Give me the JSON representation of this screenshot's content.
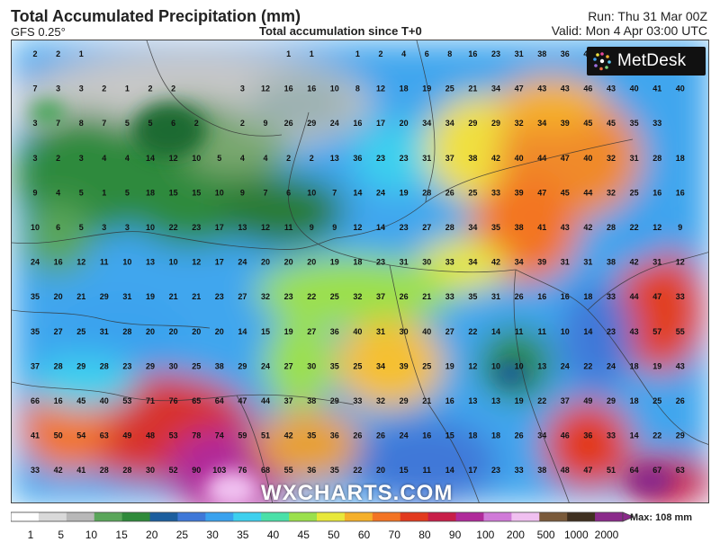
{
  "header": {
    "title": "Total Accumulated Precipitation (mm)",
    "model": "GFS 0.25°",
    "subtitle": "Total accumulation since T+0",
    "run": "Run: Thu 31 Mar 00Z",
    "valid": "Valid: Mon 4 Apr 03:00 UTC"
  },
  "branding": {
    "logo_text": "MetDesk",
    "watermark": "WXCHARTS.COM"
  },
  "legend": {
    "ticks": [
      "1",
      "5",
      "10",
      "15",
      "20",
      "25",
      "30",
      "35",
      "40",
      "45",
      "50",
      "60",
      "70",
      "80",
      "90",
      "100",
      "200",
      "500",
      "1000",
      "2000"
    ],
    "colors": [
      "#ffffff",
      "#d9d9d9",
      "#b8b8b8",
      "#5aa65a",
      "#2f8a3a",
      "#1c5e9e",
      "#3f78d8",
      "#3aa2ee",
      "#3ed0ee",
      "#4ae0a8",
      "#9be04c",
      "#e8e83a",
      "#f5b02a",
      "#f37424",
      "#e23a1e",
      "#c81e48",
      "#b02a9a",
      "#d07ad8",
      "#f0c0f0",
      "#7a5a3a",
      "#403020",
      "#8a2a8a"
    ],
    "max_label": "Max: 108 mm"
  },
  "grid_values": [
    [
      2,
      2,
      1,
      null,
      null,
      null,
      null,
      null,
      null,
      null,
      null,
      1,
      1,
      null,
      1,
      2,
      4,
      6,
      8,
      16,
      23,
      31,
      38,
      36,
      44,
      null,
      null,
      null,
      null,
      null
    ],
    [
      7,
      3,
      3,
      2,
      1,
      2,
      2,
      null,
      null,
      3,
      12,
      16,
      16,
      10,
      8,
      12,
      18,
      19,
      25,
      21,
      34,
      47,
      43,
      43,
      46,
      43,
      40,
      41,
      40,
      null
    ],
    [
      3,
      7,
      8,
      7,
      5,
      5,
      6,
      2,
      null,
      2,
      9,
      26,
      29,
      24,
      16,
      17,
      20,
      34,
      34,
      29,
      29,
      32,
      34,
      39,
      45,
      45,
      35,
      33,
      null,
      null
    ],
    [
      3,
      2,
      3,
      4,
      4,
      14,
      12,
      10,
      5,
      4,
      4,
      2,
      2,
      13,
      36,
      23,
      23,
      31,
      37,
      38,
      42,
      40,
      44,
      47,
      40,
      32,
      31,
      28,
      18,
      null
    ],
    [
      9,
      4,
      5,
      1,
      5,
      18,
      15,
      15,
      10,
      9,
      7,
      6,
      10,
      7,
      14,
      24,
      19,
      28,
      26,
      25,
      33,
      39,
      47,
      45,
      44,
      32,
      25,
      16,
      16,
      null
    ],
    [
      10,
      6,
      5,
      3,
      3,
      10,
      22,
      23,
      17,
      13,
      12,
      11,
      9,
      9,
      12,
      14,
      23,
      27,
      28,
      34,
      35,
      38,
      41,
      43,
      42,
      28,
      22,
      12,
      9,
      null
    ],
    [
      24,
      16,
      12,
      11,
      10,
      13,
      10,
      12,
      17,
      24,
      20,
      20,
      20,
      19,
      18,
      23,
      31,
      30,
      33,
      34,
      42,
      34,
      39,
      31,
      31,
      38,
      42,
      31,
      12,
      null
    ],
    [
      35,
      20,
      21,
      29,
      31,
      19,
      21,
      21,
      23,
      27,
      32,
      23,
      22,
      25,
      32,
      37,
      26,
      21,
      33,
      35,
      31,
      26,
      16,
      16,
      18,
      33,
      44,
      47,
      33,
      null
    ],
    [
      35,
      27,
      25,
      31,
      28,
      20,
      20,
      20,
      20,
      14,
      15,
      19,
      27,
      36,
      40,
      31,
      30,
      40,
      27,
      22,
      14,
      11,
      11,
      10,
      14,
      23,
      43,
      57,
      55,
      null
    ],
    [
      37,
      28,
      29,
      28,
      23,
      29,
      30,
      25,
      38,
      29,
      24,
      27,
      30,
      35,
      25,
      34,
      39,
      25,
      19,
      12,
      10,
      10,
      13,
      24,
      22,
      24,
      18,
      19,
      43,
      null
    ],
    [
      66,
      16,
      45,
      40,
      53,
      71,
      76,
      65,
      64,
      47,
      44,
      37,
      38,
      29,
      33,
      32,
      29,
      21,
      16,
      13,
      13,
      19,
      22,
      37,
      49,
      29,
      18,
      25,
      26,
      null
    ],
    [
      41,
      50,
      54,
      63,
      49,
      48,
      53,
      78,
      74,
      59,
      51,
      42,
      35,
      36,
      26,
      26,
      24,
      16,
      15,
      18,
      18,
      26,
      34,
      46,
      36,
      33,
      14,
      22,
      29,
      null
    ],
    [
      33,
      42,
      41,
      28,
      28,
      30,
      52,
      90,
      103,
      76,
      68,
      55,
      36,
      35,
      22,
      20,
      15,
      11,
      14,
      17,
      23,
      33,
      38,
      48,
      47,
      51,
      64,
      67,
      63,
      null
    ]
  ]
}
